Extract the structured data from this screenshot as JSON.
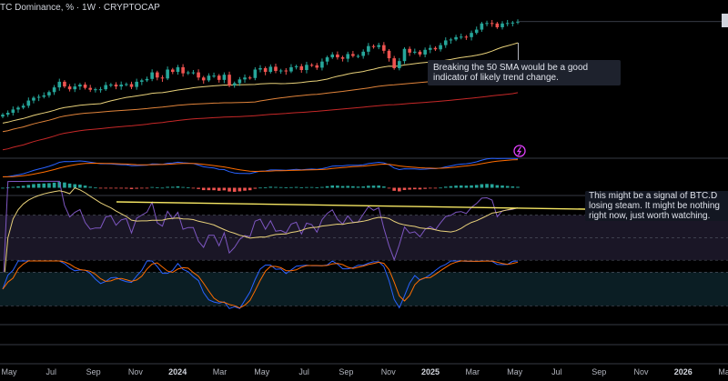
{
  "title": "TC Dominance, % · 1W · CRYPTOCAP",
  "notes": [
    "Breaking the 50 SMA would be a good indicator of likely trend change.",
    "This might be a signal of BTC.D losing steam. It might be nothing right now, just worth watching."
  ],
  "x_axis": {
    "labels": [
      "May",
      "Jul",
      "Sep",
      "Nov",
      "2024",
      "Mar",
      "May",
      "Jul",
      "Sep",
      "Nov",
      "2025",
      "Mar",
      "May",
      "Jul",
      "Sep",
      "Nov",
      "2026",
      "Mar"
    ],
    "bold": [
      "2024",
      "2025",
      "2026"
    ]
  },
  "colors": {
    "up": "#26a69a",
    "down": "#ef5350",
    "sma_short": "#e8d17a",
    "sma_mid": "#e0833a",
    "sma_long": "#c62828",
    "macd": "#2962ff",
    "signal": "#ff6d00",
    "rsi": "#7e57c2",
    "stoch_k": "#2962ff",
    "stoch_d": "#ff6d00",
    "trendline": "#f5e663"
  },
  "chart_data": [
    {
      "type": "line",
      "name": "price",
      "x_start": "2023-04-17",
      "x_step_weeks": 1,
      "close": [
        44.5,
        44.9,
        45.6,
        46.0,
        46.4,
        47.5,
        48.1,
        48.3,
        48.6,
        49.3,
        50.3,
        51.5,
        50.5,
        49.9,
        50.5,
        50.9,
        50.2,
        49.8,
        49.9,
        49.9,
        50.8,
        50.9,
        50.5,
        50.9,
        51.0,
        50.4,
        51.5,
        51.8,
        52.1,
        53.5,
        52.4,
        52.2,
        54.1,
        53.6,
        54.6,
        53.3,
        53.5,
        53.5,
        52.4,
        51.8,
        52.8,
        52.8,
        51.9,
        53.0,
        50.7,
        51.2,
        52.0,
        52.4,
        52.3,
        54.1,
        54.4,
        53.6,
        54.7,
        53.8,
        53.9,
        53.7,
        54.6,
        54.8,
        54.0,
        55.1,
        55.0,
        54.5,
        55.8,
        56.7,
        57.3,
        56.7,
        56.4,
        57.4,
        57.0,
        57.0,
        57.9,
        59.1,
        58.9,
        59.3,
        58.1,
        56.5,
        54.4,
        55.9,
        58.5,
        57.7,
        57.9,
        57.3,
        58.3,
        58.7,
        58.4,
        59.3,
        60.3,
        60.5,
        61.0,
        61.1,
        61.0,
        61.9,
        62.6,
        63.9,
        64.0,
        63.9,
        63.1,
        63.9,
        64.0,
        64.1,
        64.3
      ],
      "ylim": [
        36,
        66
      ]
    },
    {
      "type": "line",
      "name": "macd",
      "ylim": [
        -1.6,
        1.6
      ]
    },
    {
      "type": "line",
      "name": "rsi",
      "ylim": [
        35,
        85
      ]
    },
    {
      "type": "line",
      "name": "stoch",
      "ylim": [
        -10,
        100
      ]
    }
  ]
}
